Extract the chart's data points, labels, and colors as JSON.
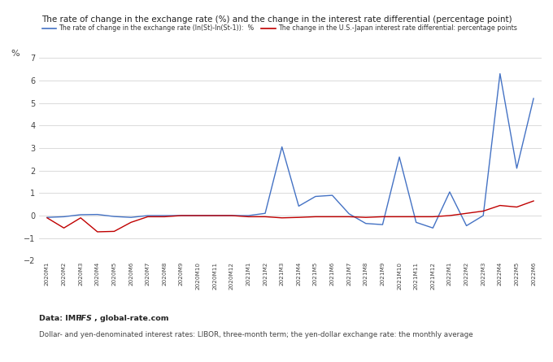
{
  "title": "The rate of change in the exchange rate (%) and the change in the interest rate differential (percentage point)",
  "percent_label": "%",
  "xlabels": [
    "2020M1",
    "2020M2",
    "2020M3",
    "2020M4",
    "2020M5",
    "2020M6",
    "2020M7",
    "2020M8",
    "2020M9",
    "2020M10",
    "2020M11",
    "2020M12",
    "2021M1",
    "2021M2",
    "2021M3",
    "2021M4",
    "2021M5",
    "2021M6",
    "2021M7",
    "2021M8",
    "2021M9",
    "2021M10",
    "2021M11",
    "2021M12",
    "2022M1",
    "2022M2",
    "2022M3",
    "2022M4",
    "2022M5",
    "2022M6"
  ],
  "blue_values": [
    -0.08,
    -0.05,
    0.04,
    0.05,
    -0.04,
    -0.08,
    0.0,
    0.0,
    0.0,
    0.0,
    0.0,
    0.0,
    0.0,
    0.1,
    3.05,
    0.42,
    0.85,
    0.9,
    0.08,
    -0.35,
    -0.4,
    2.6,
    -0.3,
    -0.55,
    1.05,
    -0.45,
    0.0,
    6.3,
    2.1,
    5.2
  ],
  "red_values": [
    -0.1,
    -0.55,
    -0.1,
    -0.72,
    -0.7,
    -0.3,
    -0.05,
    -0.05,
    0.0,
    0.0,
    0.0,
    0.0,
    -0.05,
    -0.05,
    -0.1,
    -0.08,
    -0.05,
    -0.05,
    -0.05,
    -0.08,
    -0.05,
    -0.05,
    -0.05,
    -0.05,
    0.0,
    0.1,
    0.2,
    0.45,
    0.38,
    0.65
  ],
  "blue_label": "The rate of change in the exchange rate (ln(St)-ln(St-1)):  %",
  "red_label": "The change in the U.S.-Japan interest rate differential: percentage points",
  "blue_color": "#4472C4",
  "red_color": "#C00000",
  "ylim": [
    -2,
    7
  ],
  "yticks": [
    -2,
    -1,
    0,
    1,
    2,
    3,
    4,
    5,
    6,
    7
  ],
  "footnote_bold": "Data: IMF ",
  "footnote_italic": "IFS",
  "footnote_rest": ", global-rate.com",
  "footnote2": "Dollar- and yen-denominated interest rates: LIBOR, three-month term; the yen-dollar exchange rate: the monthly average",
  "bg_color": "#ffffff",
  "grid_color": "#cccccc"
}
